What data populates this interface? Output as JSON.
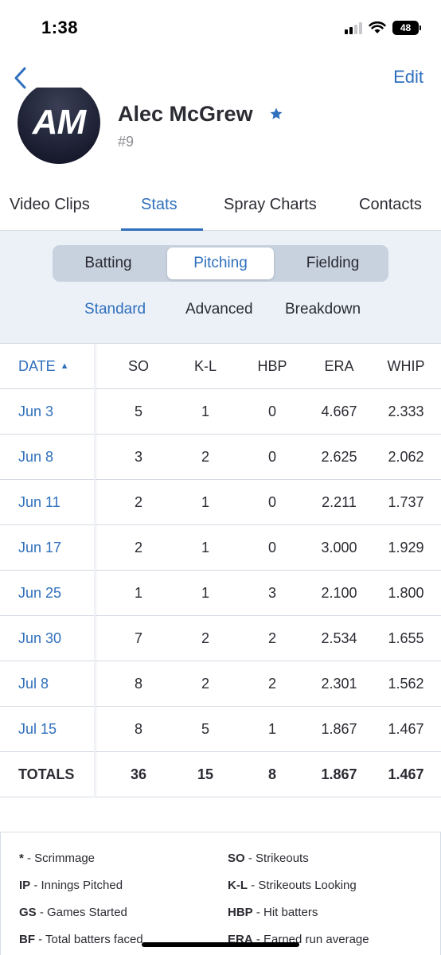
{
  "status": {
    "time": "1:38",
    "battery": "48"
  },
  "nav": {
    "edit_label": "Edit"
  },
  "player": {
    "initials": "AM",
    "name": "Alec McGrew",
    "number": "#9"
  },
  "tabs": [
    {
      "label": "Video Clips"
    },
    {
      "label": "Stats"
    },
    {
      "label": "Spray Charts"
    },
    {
      "label": "Contacts"
    }
  ],
  "segments": [
    {
      "label": "Batting"
    },
    {
      "label": "Pitching"
    },
    {
      "label": "Fielding"
    }
  ],
  "subtabs": [
    {
      "label": "Standard"
    },
    {
      "label": "Advanced"
    },
    {
      "label": "Breakdown"
    }
  ],
  "table": {
    "headers": [
      "DATE",
      "SO",
      "K-L",
      "HBP",
      "ERA",
      "WHIP"
    ],
    "rows": [
      [
        "Jun 3",
        "5",
        "1",
        "0",
        "4.667",
        "2.333"
      ],
      [
        "Jun 8",
        "3",
        "2",
        "0",
        "2.625",
        "2.062"
      ],
      [
        "Jun 11",
        "2",
        "1",
        "0",
        "2.211",
        "1.737"
      ],
      [
        "Jun 17",
        "2",
        "1",
        "0",
        "3.000",
        "1.929"
      ],
      [
        "Jun 25",
        "1",
        "1",
        "3",
        "2.100",
        "1.800"
      ],
      [
        "Jun 30",
        "7",
        "2",
        "2",
        "2.534",
        "1.655"
      ],
      [
        "Jul 8",
        "8",
        "2",
        "2",
        "2.301",
        "1.562"
      ],
      [
        "Jul 15",
        "8",
        "5",
        "1",
        "1.867",
        "1.467"
      ]
    ],
    "totals": [
      "TOTALS",
      "36",
      "15",
      "8",
      "1.867",
      "1.467"
    ]
  },
  "legend": [
    {
      "abbr": "*",
      "desc": " - Scrimmage"
    },
    {
      "abbr": "SO",
      "desc": " - Strikeouts"
    },
    {
      "abbr": "IP",
      "desc": " - Innings Pitched"
    },
    {
      "abbr": "K-L",
      "desc": " - Strikeouts Looking"
    },
    {
      "abbr": "GS",
      "desc": " - Games Started"
    },
    {
      "abbr": "HBP",
      "desc": " - Hit batters"
    },
    {
      "abbr": "BF",
      "desc": " - Total batters faced"
    },
    {
      "abbr": "ERA",
      "desc": " - Earned run average"
    }
  ],
  "colors": {
    "accent": "#2f6fbc",
    "background_panel": "#ecf1f8",
    "text": "#2b2b33"
  }
}
